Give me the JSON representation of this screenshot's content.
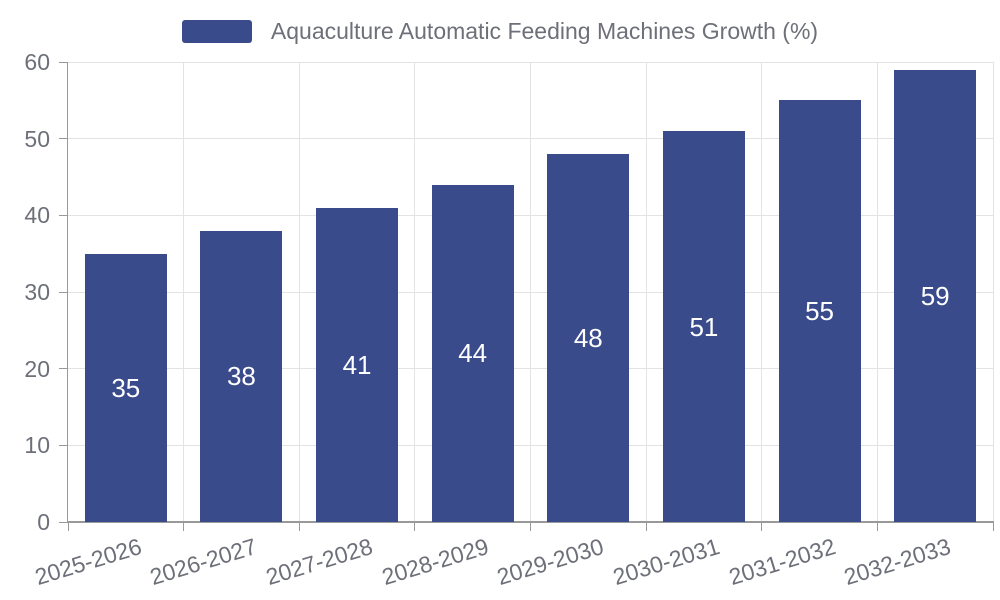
{
  "legend": {
    "label": "Aquaculture Automatic Feeding Machines Growth (%)",
    "swatch_color": "#3A4B8C"
  },
  "colors": {
    "bar": "#3A4B8C",
    "bar_label": "#FFFFFF",
    "grid_line": "#E3E3E3",
    "axis_line": "#999999",
    "text": "#6E7079",
    "background": "#FFFFFF"
  },
  "chart_data": {
    "type": "bar",
    "title": "Aquaculture Automatic Feeding Machines Growth (%)",
    "categories": [
      "2025-2026",
      "2026-2027",
      "2027-2028",
      "2028-2029",
      "2029-2030",
      "2030-2031",
      "2031-2032",
      "2032-2033"
    ],
    "values": [
      35,
      38,
      41,
      44,
      48,
      51,
      55,
      59
    ],
    "xlabel": "",
    "ylabel": "",
    "ylim": [
      0,
      60
    ],
    "yticks": [
      0,
      10,
      20,
      30,
      40,
      50,
      60
    ],
    "grid": true,
    "legend_position": "top-center",
    "value_label_position": "inside-center"
  }
}
